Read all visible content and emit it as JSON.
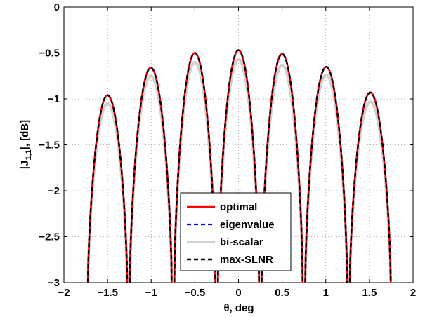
{
  "chart_data": {
    "type": "line",
    "title": "",
    "xlabel": "θ, deg",
    "ylabel": "|J_{1,1}|, [dB]",
    "ylabel_main": "|J",
    "ylabel_sub": "1,1",
    "ylabel_tail": "|, [dB]",
    "xlim": [
      -2,
      2
    ],
    "ylim": [
      -3,
      0
    ],
    "x_ticks": [
      -2,
      -1.5,
      -1,
      -0.5,
      0,
      0.5,
      1,
      1.5,
      2
    ],
    "x_tick_labels": [
      "−2",
      "−1.5",
      "−1",
      "−0.5",
      "0",
      "0.5",
      "1",
      "1.5",
      "2"
    ],
    "y_ticks": [
      0,
      -0.5,
      -1,
      -1.5,
      -2,
      -2.5,
      -3
    ],
    "y_tick_labels": [
      "0",
      "−0.5",
      "−1",
      "−1.5",
      "−2",
      "−2.5",
      "−3"
    ],
    "grid": true,
    "legend_position": "bottom-center",
    "lobes": [
      {
        "center": -1.5,
        "start": -1.73,
        "end": -1.27,
        "peak_opt": -0.96,
        "peak_bis": -1.05
      },
      {
        "center": -1.0,
        "start": -1.25,
        "end": -0.76,
        "peak_opt": -0.66,
        "peak_bis": -0.75
      },
      {
        "center": -0.5,
        "start": -0.74,
        "end": -0.26,
        "peak_opt": -0.5,
        "peak_bis": -0.6
      },
      {
        "center": 0.0,
        "start": -0.24,
        "end": 0.24,
        "peak_opt": -0.47,
        "peak_bis": -0.57
      },
      {
        "center": 0.5,
        "start": 0.26,
        "end": 0.74,
        "peak_opt": -0.51,
        "peak_bis": -0.63
      },
      {
        "center": 1.0,
        "start": 0.76,
        "end": 1.25,
        "peak_opt": -0.65,
        "peak_bis": -0.74
      },
      {
        "center": 1.5,
        "start": 1.27,
        "end": 1.75,
        "peak_opt": -0.93,
        "peak_bis": -1.03
      }
    ],
    "series": [
      {
        "name": "optimal",
        "color": "#ff0000",
        "style": "solid",
        "peak_key": "peak_opt"
      },
      {
        "name": "eigenvalue",
        "color": "#0000ff",
        "style": "dashed",
        "peak_key": "peak_opt"
      },
      {
        "name": "bi-scalar",
        "color": "#d4d0cc",
        "style": "solid",
        "peak_key": "peak_bis"
      },
      {
        "name": "max-SLNR",
        "color": "#000000",
        "style": "dashed",
        "peak_key": "peak_opt"
      }
    ]
  }
}
